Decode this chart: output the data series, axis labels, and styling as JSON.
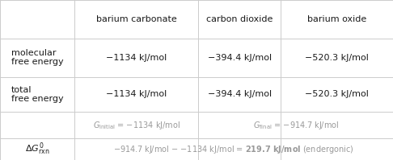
{
  "col_headers": [
    "",
    "barium carbonate",
    "carbon dioxide",
    "barium oxide"
  ],
  "row1_label": "molecular\nfree energy",
  "row2_label": "total\nfree energy",
  "row3_label": "",
  "row4_label": "ΔGᴼᴿₙ",
  "row1_vals": [
    "−1134 kJ/mol",
    "−394.4 kJ/mol",
    "−520.3 kJ/mol"
  ],
  "row2_vals": [
    "−1134 kJ/mol",
    "−394.4 kJ/mol",
    "−520.3 kJ/mol"
  ],
  "row4_suffix_normal": "−914.7 kJ/mol − −1134 kJ/mol = ",
  "row4_bold": "219.7 kJ/mol",
  "row4_end": " (endergonic)",
  "bg_color": "#ffffff",
  "text_color": "#1a1a1a",
  "gray_color": "#999999",
  "grid_color": "#cccccc",
  "font_size": 8.0,
  "small_font_size": 7.0,
  "col_bounds": [
    0.0,
    0.19,
    0.505,
    0.715,
    1.0
  ],
  "row_bounds": [
    1.0,
    0.76,
    0.52,
    0.3,
    0.135,
    0.0
  ]
}
